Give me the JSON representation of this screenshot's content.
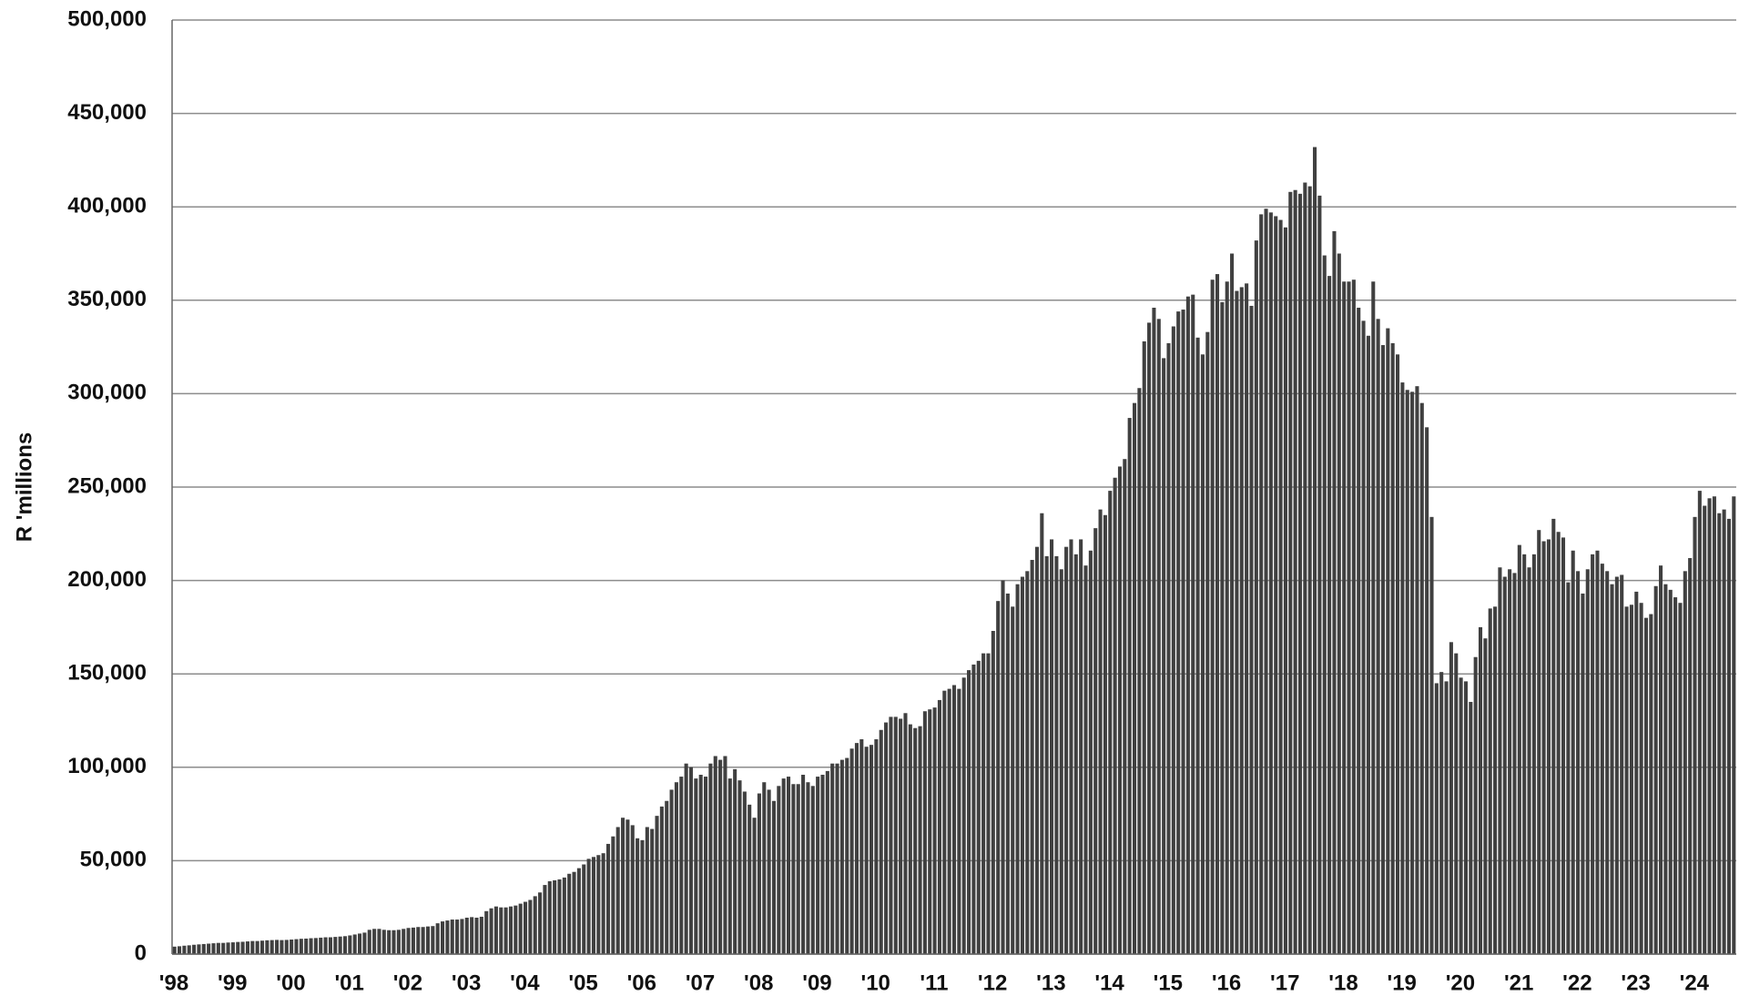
{
  "chart_data": {
    "type": "bar",
    "y_axis_label": "R 'millions",
    "color": "#404040",
    "grid": true,
    "ylim": [
      0,
      500000
    ],
    "yticks": [
      0,
      {
        "value": 50000,
        "label": "50,000"
      },
      {
        "value": 100000,
        "label": "100,000"
      },
      {
        "value": 150000,
        "label": "150,000"
      },
      {
        "value": 200000,
        "label": "200,000"
      },
      {
        "value": 250000,
        "label": "250,000"
      },
      {
        "value": 300000,
        "label": "300,000"
      },
      {
        "value": 350000,
        "label": "350,000"
      },
      {
        "value": 400000,
        "label": "400,000"
      },
      {
        "value": 450000,
        "label": "450,000"
      },
      {
        "value": 500000,
        "label": "500,000"
      }
    ],
    "categories": [
      "'98",
      null,
      null,
      null,
      null,
      null,
      null,
      null,
      null,
      null,
      null,
      null,
      "'99",
      null,
      null,
      null,
      null,
      null,
      null,
      null,
      null,
      null,
      null,
      null,
      "'00",
      null,
      null,
      null,
      null,
      null,
      null,
      null,
      null,
      null,
      null,
      null,
      "'01",
      null,
      null,
      null,
      null,
      null,
      null,
      null,
      null,
      null,
      null,
      null,
      "'02",
      null,
      null,
      null,
      null,
      null,
      null,
      null,
      null,
      null,
      null,
      null,
      "'03",
      null,
      null,
      null,
      null,
      null,
      null,
      null,
      null,
      null,
      null,
      null,
      "'04",
      null,
      null,
      null,
      null,
      null,
      null,
      null,
      null,
      null,
      null,
      null,
      "'05",
      null,
      null,
      null,
      null,
      null,
      null,
      null,
      null,
      null,
      null,
      null,
      "'06",
      null,
      null,
      null,
      null,
      null,
      null,
      null,
      null,
      null,
      null,
      null,
      "'07",
      null,
      null,
      null,
      null,
      null,
      null,
      null,
      null,
      null,
      null,
      null,
      "'08",
      null,
      null,
      null,
      null,
      null,
      null,
      null,
      null,
      null,
      null,
      null,
      "'09",
      null,
      null,
      null,
      null,
      null,
      null,
      null,
      null,
      null,
      null,
      null,
      "'10",
      null,
      null,
      null,
      null,
      null,
      null,
      null,
      null,
      null,
      null,
      null,
      "'11",
      null,
      null,
      null,
      null,
      null,
      null,
      null,
      null,
      null,
      null,
      null,
      "'12",
      null,
      null,
      null,
      null,
      null,
      null,
      null,
      null,
      null,
      null,
      null,
      "'13",
      null,
      null,
      null,
      null,
      null,
      null,
      null,
      null,
      null,
      null,
      null,
      "'14",
      null,
      null,
      null,
      null,
      null,
      null,
      null,
      null,
      null,
      null,
      null,
      "'15",
      null,
      null,
      null,
      null,
      null,
      null,
      null,
      null,
      null,
      null,
      null,
      "'16",
      null,
      null,
      null,
      null,
      null,
      null,
      null,
      null,
      null,
      null,
      null,
      "'17",
      null,
      null,
      null,
      null,
      null,
      null,
      null,
      null,
      null,
      null,
      null,
      "'18",
      null,
      null,
      null,
      null,
      null,
      null,
      null,
      null,
      null,
      null,
      null,
      "'19",
      null,
      null,
      null,
      null,
      null,
      null,
      null,
      null,
      null,
      null,
      null,
      "'20",
      null,
      null,
      null,
      null,
      null,
      null,
      null,
      null,
      null,
      null,
      null,
      "'21",
      null,
      null,
      null,
      null,
      null,
      null,
      null,
      null,
      null,
      null,
      null,
      "'22",
      null,
      null,
      null,
      null,
      null,
      null,
      null,
      null,
      null,
      null,
      null,
      "'23",
      null,
      null,
      null,
      null,
      null,
      null,
      null,
      null,
      null,
      null,
      null,
      "'24",
      null,
      null,
      null,
      null,
      null,
      null,
      null,
      null
    ],
    "values": [
      4000,
      4200,
      4500,
      4700,
      5000,
      5200,
      5400,
      5600,
      5800,
      6000,
      6000,
      6200,
      6300,
      6500,
      6600,
      6800,
      7000,
      7000,
      7200,
      7400,
      7500,
      7600,
      7500,
      7600,
      7800,
      8000,
      8200,
      8300,
      8500,
      8600,
      8800,
      9000,
      9000,
      9200,
      9400,
      9600,
      10000,
      10500,
      11000,
      11500,
      13000,
      13500,
      13500,
      13000,
      12800,
      12800,
      13000,
      13500,
      14000,
      14200,
      14500,
      14500,
      14800,
      15000,
      16500,
      17500,
      18000,
      18500,
      18500,
      18800,
      19500,
      19800,
      19500,
      20000,
      23000,
      24500,
      25500,
      25000,
      25000,
      25500,
      26000,
      27000,
      28000,
      29000,
      31000,
      33000,
      37000,
      39000,
      39500,
      40000,
      41000,
      43000,
      44000,
      46000,
      48000,
      51000,
      52000,
      53000,
      54000,
      59000,
      63000,
      68000,
      73000,
      72000,
      69000,
      62000,
      61000,
      68000,
      67000,
      74000,
      79000,
      82000,
      88000,
      92000,
      95000,
      102000,
      100000,
      94000,
      96000,
      95000,
      102000,
      106000,
      104000,
      106000,
      94000,
      99000,
      93000,
      87000,
      80000,
      73000,
      86000,
      92000,
      88000,
      82000,
      90000,
      94000,
      95000,
      91000,
      91000,
      96000,
      92000,
      90000,
      95000,
      96000,
      98000,
      102000,
      102000,
      104000,
      105000,
      110000,
      113000,
      115000,
      111000,
      112000,
      115000,
      120000,
      124000,
      127000,
      127000,
      126000,
      129000,
      123000,
      121000,
      122000,
      130000,
      131000,
      132000,
      136000,
      141000,
      142000,
      144000,
      142000,
      148000,
      152000,
      155000,
      157000,
      161000,
      161000,
      173000,
      189000,
      200000,
      193000,
      186000,
      198000,
      202000,
      205000,
      211000,
      218000,
      236000,
      213000,
      222000,
      213000,
      206000,
      218000,
      222000,
      214000,
      222000,
      208000,
      216000,
      228000,
      238000,
      235000,
      248000,
      255000,
      261000,
      265000,
      287000,
      295000,
      303000,
      328000,
      338000,
      346000,
      340000,
      319000,
      327000,
      336000,
      344000,
      345000,
      352000,
      353000,
      330000,
      321000,
      333000,
      361000,
      364000,
      349000,
      360000,
      375000,
      355000,
      357000,
      359000,
      347000,
      382000,
      396000,
      399000,
      397000,
      395000,
      393000,
      389000,
      408000,
      409000,
      407000,
      413000,
      411000,
      432000,
      406000,
      374000,
      363000,
      387000,
      375000,
      360000,
      360000,
      361000,
      346000,
      339000,
      331000,
      360000,
      340000,
      326000,
      335000,
      327000,
      321000,
      306000,
      302000,
      301000,
      304000,
      295000,
      282000,
      234000,
      145000,
      151000,
      146000,
      167000,
      161000,
      148000,
      146000,
      135000,
      159000,
      175000,
      169000,
      185000,
      186000,
      207000,
      202000,
      206000,
      204000,
      219000,
      214000,
      207000,
      214000,
      227000,
      221000,
      222000,
      233000,
      226000,
      223000,
      199000,
      216000,
      205000,
      193000,
      206000,
      214000,
      216000,
      209000,
      205000,
      198000,
      202000,
      203000,
      186000,
      187000,
      194000,
      188000,
      180000,
      182000,
      197000,
      208000,
      198000,
      195000,
      191000,
      188000,
      205000,
      212000,
      234000,
      248000,
      240000,
      244000,
      245000,
      236000,
      238000,
      233000,
      245000
    ]
  }
}
